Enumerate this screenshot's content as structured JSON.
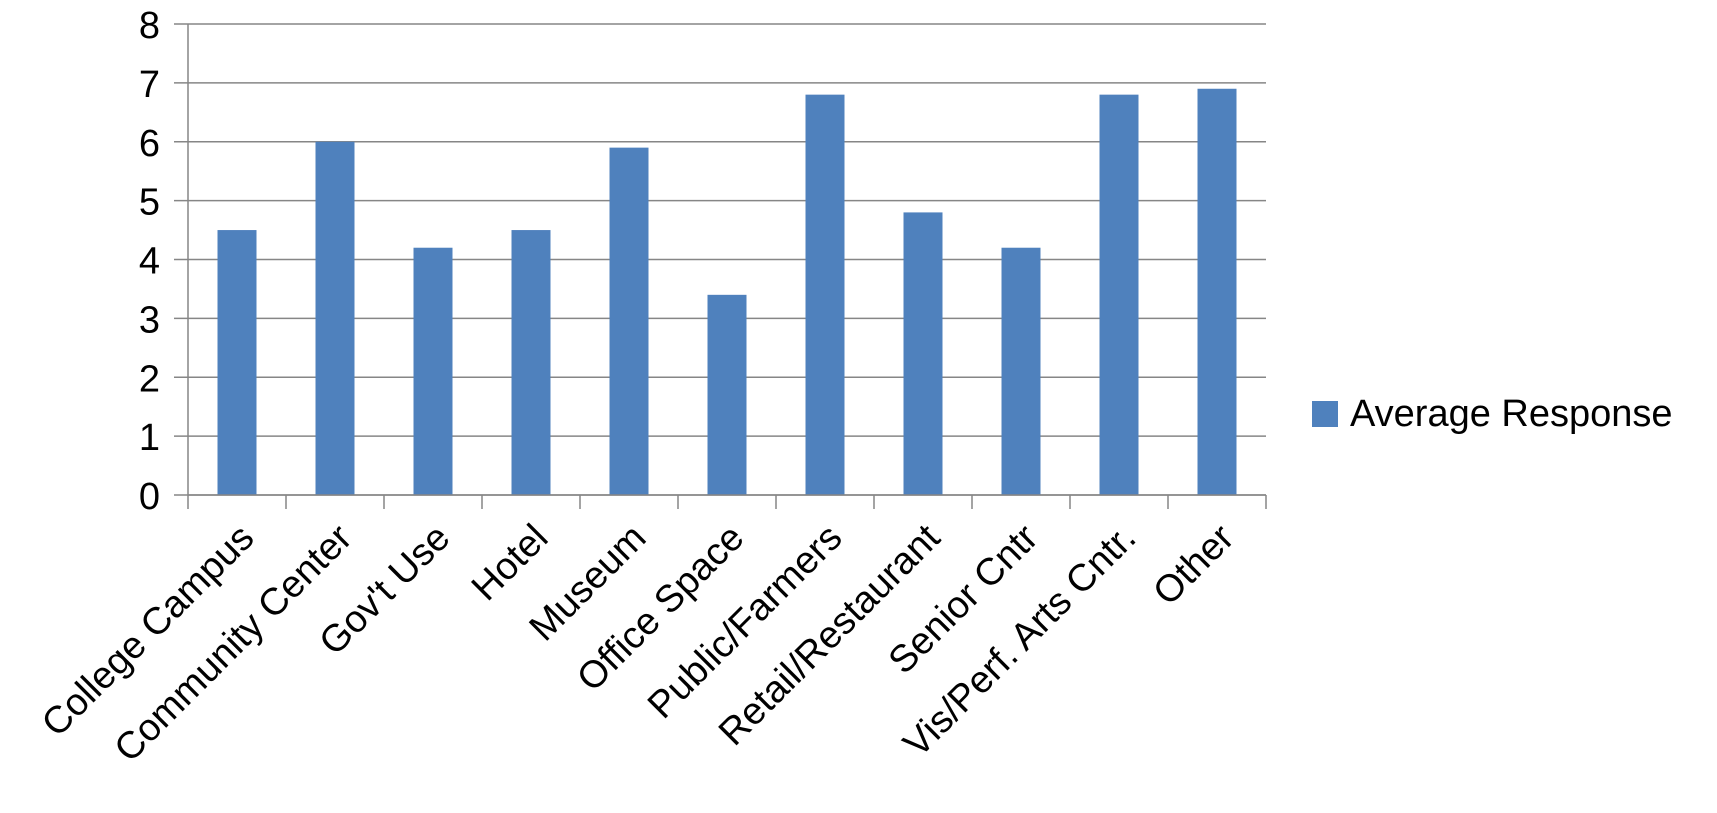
{
  "chart_data": {
    "type": "bar",
    "categories": [
      "College Campus",
      "Community Center",
      "Gov't Use",
      "Hotel",
      "Museum",
      "Office Space",
      "Public/Farmers",
      "Retail/Restaurant",
      "Senior Cntr",
      "Vis/Perf. Arts Cntr.",
      "Other"
    ],
    "series": [
      {
        "name": "Average Response",
        "values": [
          4.5,
          6.0,
          4.2,
          4.5,
          5.9,
          3.4,
          6.8,
          4.8,
          4.2,
          6.8,
          6.9
        ],
        "color": "#4F81BD"
      }
    ],
    "yticks": [
      "0",
      "1",
      "2",
      "3",
      "4",
      "5",
      "6",
      "7",
      "8"
    ],
    "ylim": [
      0,
      8
    ],
    "grid": true,
    "legend_position": "right",
    "colors": {
      "bar": "#4F81BD",
      "grid": "#868686",
      "axis": "#868686"
    }
  }
}
